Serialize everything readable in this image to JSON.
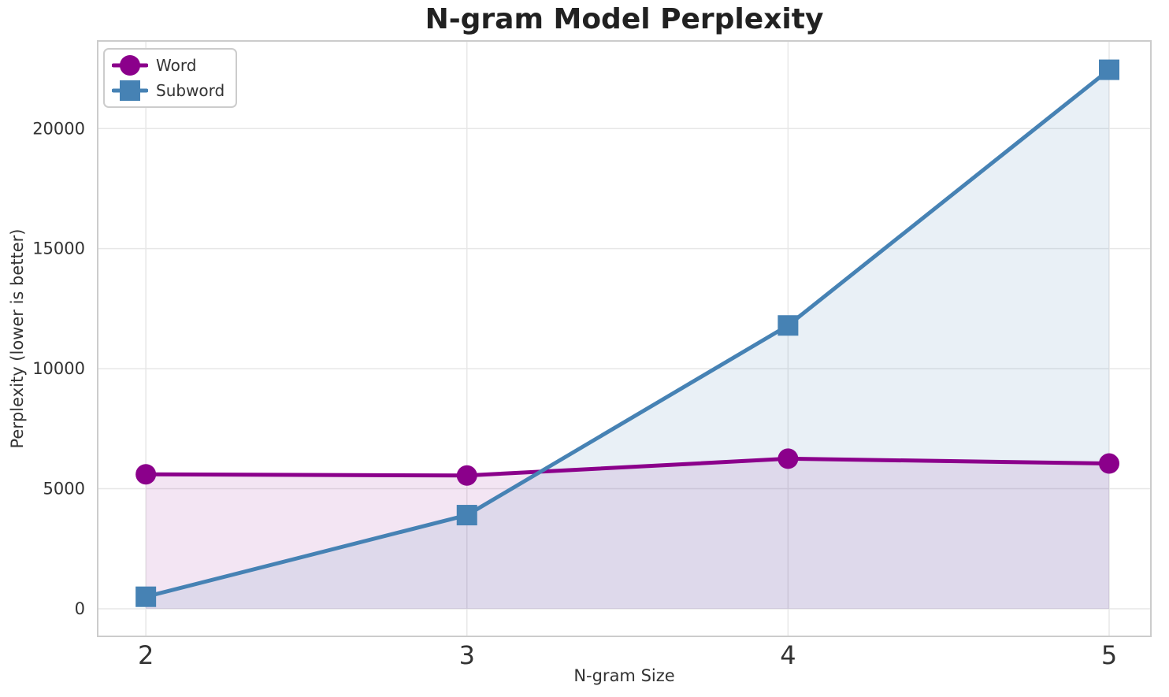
{
  "chart_data": {
    "type": "line",
    "title": "N-gram Model Perplexity",
    "xlabel": "N-gram Size",
    "ylabel": "Perplexity (lower is better)",
    "x": [
      2,
      3,
      4,
      5
    ],
    "series": [
      {
        "name": "Word",
        "marker": "circle",
        "color": "#8B008B",
        "fill": "rgba(139,0,139,0.10)",
        "values": [
          5600,
          5550,
          6250,
          6050
        ]
      },
      {
        "name": "Subword",
        "marker": "square",
        "color": "#4682B4",
        "fill": "rgba(70,130,180,0.12)",
        "values": [
          500,
          3900,
          11800,
          22450
        ]
      }
    ],
    "fill_baseline": 0,
    "xticks": [
      "2",
      "3",
      "4",
      "5"
    ],
    "xtick_values": [
      2,
      3,
      4,
      5
    ],
    "yticks": [
      "0",
      "5000",
      "10000",
      "15000",
      "20000"
    ],
    "ytick_values": [
      0,
      5000,
      10000,
      15000,
      20000
    ],
    "xlim": [
      1.85,
      5.13
    ],
    "ylim": [
      -1150,
      23650
    ],
    "grid": true,
    "legend_position": "top-left",
    "colors": {
      "grid": "#e7e7e7",
      "spine": "#cccccc",
      "title_text": "#212121",
      "tick_text": "#333333"
    }
  }
}
